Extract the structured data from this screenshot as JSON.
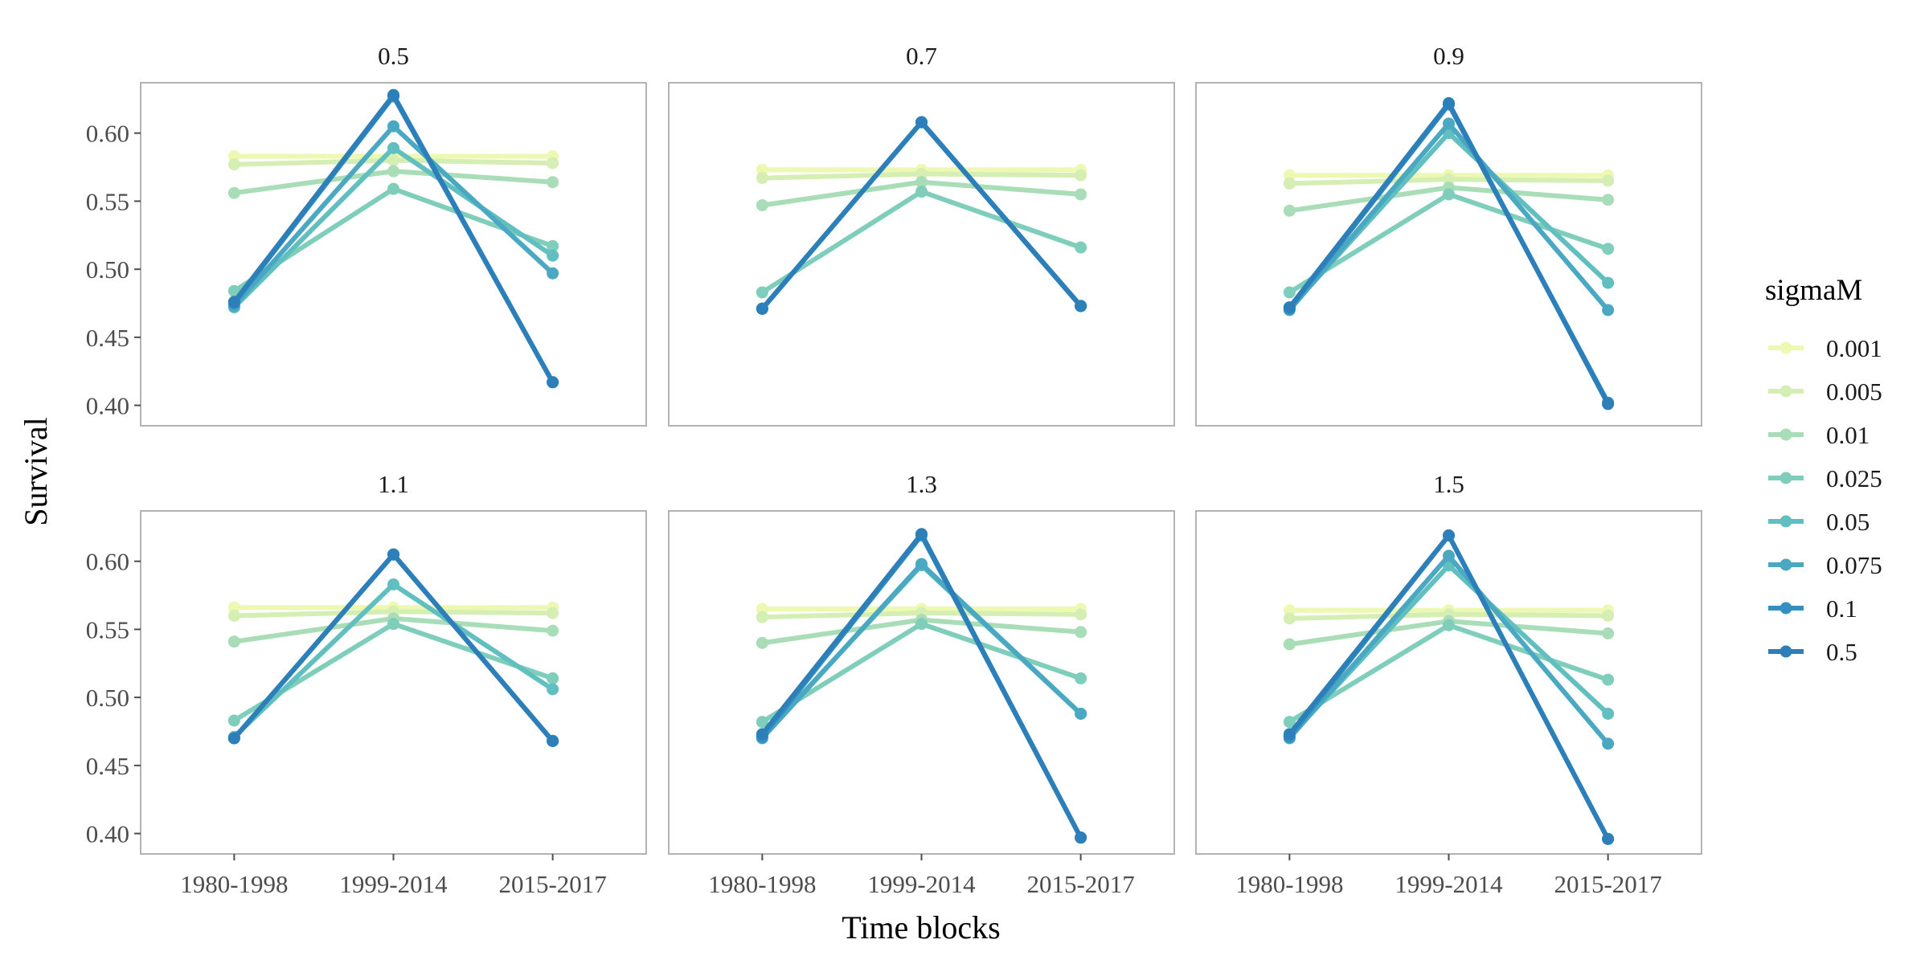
{
  "chart_data": {
    "type": "line",
    "xlabel": "Time blocks",
    "ylabel": "Survival",
    "categories": [
      "1980-1998",
      "1999-2014",
      "2015-2017"
    ],
    "ylim": [
      0.385,
      0.637
    ],
    "yticks": [
      "0.40",
      "0.45",
      "0.50",
      "0.55",
      "0.60"
    ],
    "grid": false,
    "legend": {
      "title": "sigmaM",
      "position": "right",
      "entries": [
        "0.001",
        "0.005",
        "0.01",
        "0.025",
        "0.05",
        "0.075",
        "0.1",
        "0.5"
      ],
      "colors": [
        "#EDF8B1",
        "#D5EEB3",
        "#A9DDB7",
        "#7FCDBB",
        "#62BFC0",
        "#4AA8C2",
        "#3590C1",
        "#2C7FB8"
      ]
    },
    "panels": [
      {
        "title": "0.5",
        "series": [
          {
            "name": "0.001",
            "values": [
              0.583,
              0.583,
              0.583
            ]
          },
          {
            "name": "0.005",
            "values": [
              0.577,
              0.58,
              0.578
            ]
          },
          {
            "name": "0.01",
            "values": [
              0.556,
              0.572,
              0.564
            ]
          },
          {
            "name": "0.025",
            "values": [
              0.484,
              0.559,
              0.517
            ]
          },
          {
            "name": "0.05",
            "values": [
              0.472,
              0.589,
              0.51
            ]
          },
          {
            "name": "0.075",
            "values": [
              0.473,
              0.605,
              0.497
            ]
          },
          {
            "name": "0.1",
            "values": [
              0.475,
              0.627,
              0.417
            ]
          },
          {
            "name": "0.5",
            "values": [
              0.476,
              0.628,
              0.417
            ]
          }
        ]
      },
      {
        "title": "0.7",
        "series": [
          {
            "name": "0.001",
            "values": [
              0.573,
              0.573,
              0.573
            ]
          },
          {
            "name": "0.005",
            "values": [
              0.567,
              0.57,
              0.569
            ]
          },
          {
            "name": "0.01",
            "values": [
              0.547,
              0.564,
              0.555
            ]
          },
          {
            "name": "0.025",
            "values": [
              0.483,
              0.557,
              0.516
            ]
          },
          {
            "name": "0.05",
            "values": [
              0.471,
              0.608,
              0.473
            ]
          },
          {
            "name": "0.075",
            "values": [
              0.471,
              0.608,
              0.473
            ]
          },
          {
            "name": "0.1",
            "values": [
              0.471,
              0.608,
              0.473
            ]
          },
          {
            "name": "0.5",
            "values": [
              0.471,
              0.608,
              0.473
            ]
          }
        ]
      },
      {
        "title": "0.9",
        "series": [
          {
            "name": "0.001",
            "values": [
              0.569,
              0.569,
              0.569
            ]
          },
          {
            "name": "0.005",
            "values": [
              0.563,
              0.566,
              0.565
            ]
          },
          {
            "name": "0.01",
            "values": [
              0.543,
              0.56,
              0.551
            ]
          },
          {
            "name": "0.025",
            "values": [
              0.483,
              0.555,
              0.515
            ]
          },
          {
            "name": "0.05",
            "values": [
              0.471,
              0.6,
              0.49
            ]
          },
          {
            "name": "0.075",
            "values": [
              0.47,
              0.607,
              0.47
            ]
          },
          {
            "name": "0.1",
            "values": [
              0.471,
              0.621,
              0.402
            ]
          },
          {
            "name": "0.5",
            "values": [
              0.472,
              0.622,
              0.401
            ]
          }
        ]
      },
      {
        "title": "1.1",
        "series": [
          {
            "name": "0.001",
            "values": [
              0.566,
              0.566,
              0.566
            ]
          },
          {
            "name": "0.005",
            "values": [
              0.56,
              0.563,
              0.562
            ]
          },
          {
            "name": "0.01",
            "values": [
              0.541,
              0.558,
              0.549
            ]
          },
          {
            "name": "0.025",
            "values": [
              0.483,
              0.554,
              0.514
            ]
          },
          {
            "name": "0.05",
            "values": [
              0.471,
              0.583,
              0.506
            ]
          },
          {
            "name": "0.075",
            "values": [
              0.47,
              0.605,
              0.468
            ]
          },
          {
            "name": "0.1",
            "values": [
              0.47,
              0.605,
              0.468
            ]
          },
          {
            "name": "0.5",
            "values": [
              0.47,
              0.605,
              0.468
            ]
          }
        ]
      },
      {
        "title": "1.3",
        "series": [
          {
            "name": "0.001",
            "values": [
              0.565,
              0.565,
              0.565
            ]
          },
          {
            "name": "0.005",
            "values": [
              0.559,
              0.562,
              0.561
            ]
          },
          {
            "name": "0.01",
            "values": [
              0.54,
              0.557,
              0.548
            ]
          },
          {
            "name": "0.025",
            "values": [
              0.482,
              0.554,
              0.514
            ]
          },
          {
            "name": "0.05",
            "values": [
              0.471,
              0.597,
              0.488
            ]
          },
          {
            "name": "0.075",
            "values": [
              0.47,
              0.598,
              0.488
            ]
          },
          {
            "name": "0.1",
            "values": [
              0.471,
              0.619,
              0.397
            ]
          },
          {
            "name": "0.5",
            "values": [
              0.473,
              0.62,
              0.397
            ]
          }
        ]
      },
      {
        "title": "1.5",
        "series": [
          {
            "name": "0.001",
            "values": [
              0.564,
              0.564,
              0.564
            ]
          },
          {
            "name": "0.005",
            "values": [
              0.558,
              0.561,
              0.56
            ]
          },
          {
            "name": "0.01",
            "values": [
              0.539,
              0.556,
              0.547
            ]
          },
          {
            "name": "0.025",
            "values": [
              0.482,
              0.553,
              0.513
            ]
          },
          {
            "name": "0.05",
            "values": [
              0.471,
              0.597,
              0.488
            ]
          },
          {
            "name": "0.075",
            "values": [
              0.47,
              0.604,
              0.466
            ]
          },
          {
            "name": "0.1",
            "values": [
              0.471,
              0.619,
              0.396
            ]
          },
          {
            "name": "0.5",
            "values": [
              0.473,
              0.619,
              0.396
            ]
          }
        ]
      }
    ]
  }
}
